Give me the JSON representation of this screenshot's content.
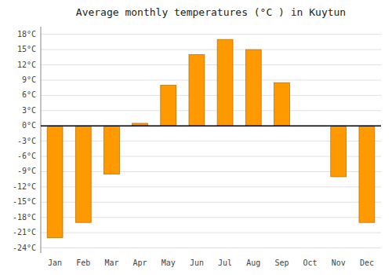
{
  "chart_data": {
    "type": "bar",
    "title": "Average monthly temperatures (°C ) in Kuytun",
    "categories": [
      "Jan",
      "Feb",
      "Mar",
      "Apr",
      "May",
      "Jun",
      "Jul",
      "Aug",
      "Sep",
      "Oct",
      "Nov",
      "Dec"
    ],
    "values": [
      -22,
      -19,
      -9.5,
      0.5,
      8,
      14,
      17,
      15,
      8.5,
      0,
      -10,
      -19
    ],
    "color": "#FF9900",
    "ylim": [
      -25,
      19.5
    ],
    "yticks": [
      {
        "value": -24,
        "label": "-24°C"
      },
      {
        "value": -21,
        "label": "-21°C"
      },
      {
        "value": -18,
        "label": "-18°C"
      },
      {
        "value": -15,
        "label": "-15°C"
      },
      {
        "value": -12,
        "label": "-12°C"
      },
      {
        "value": -9,
        "label": "-9°C"
      },
      {
        "value": -6,
        "label": "-6°C"
      },
      {
        "value": -3,
        "label": "-3°C"
      },
      {
        "value": 0,
        "label": "0°C"
      },
      {
        "value": 3,
        "label": "3°C"
      },
      {
        "value": 6,
        "label": "6°C"
      },
      {
        "value": 9,
        "label": "9°C"
      },
      {
        "value": 12,
        "label": "12°C"
      },
      {
        "value": 15,
        "label": "15°C"
      },
      {
        "value": 18,
        "label": "18°C"
      }
    ],
    "grid": true
  }
}
